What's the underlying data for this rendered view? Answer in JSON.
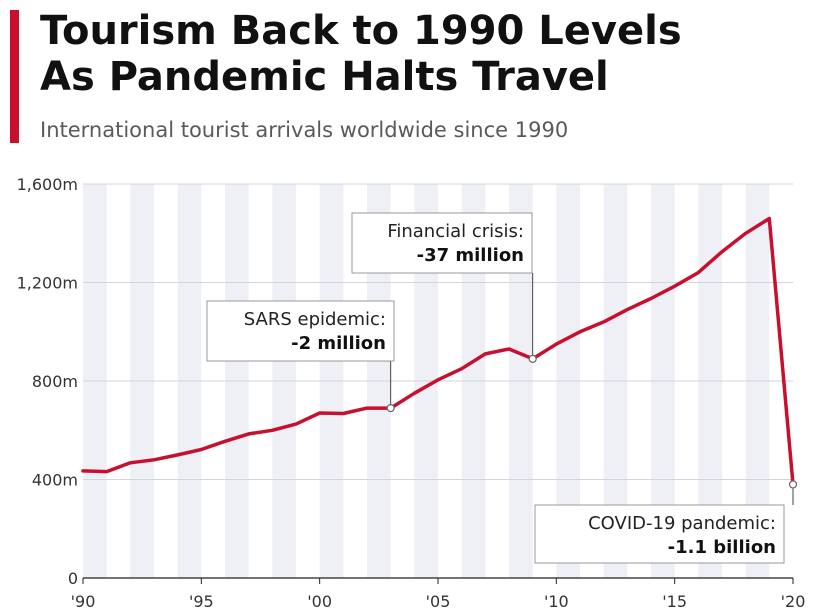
{
  "title_lines": [
    "Tourism Back to 1990 Levels",
    "As Pandemic Halts Travel"
  ],
  "subtitle": "International tourist arrivals worldwide since 1990",
  "accent_color": "#c8102e",
  "chart_data": {
    "type": "line",
    "title": "Tourism Back to 1990 Levels As Pandemic Halts Travel",
    "subtitle": "International tourist arrivals worldwide since 1990",
    "xlabel": "",
    "ylabel": "",
    "xlim": [
      1990,
      2020
    ],
    "ylim": [
      0,
      1600
    ],
    "grid": true,
    "y_ticks": [
      {
        "value": 0,
        "label": "0"
      },
      {
        "value": 400,
        "label": "400m"
      },
      {
        "value": 800,
        "label": "800m"
      },
      {
        "value": 1200,
        "label": "1,200m"
      },
      {
        "value": 1600,
        "label": "1,600m"
      }
    ],
    "x_ticks": [
      {
        "value": 1990,
        "label": "'90"
      },
      {
        "value": 1995,
        "label": "'95"
      },
      {
        "value": 2000,
        "label": "'00"
      },
      {
        "value": 2005,
        "label": "'05"
      },
      {
        "value": 2010,
        "label": "'10"
      },
      {
        "value": 2015,
        "label": "'15"
      },
      {
        "value": 2020,
        "label": "'20"
      }
    ],
    "series": [
      {
        "color": "#c8102e",
        "x": [
          1990,
          1991,
          1992,
          1993,
          1994,
          1995,
          1996,
          1997,
          1998,
          1999,
          2000,
          2001,
          2002,
          2003,
          2004,
          2005,
          2006,
          2007,
          2008,
          2009,
          2010,
          2011,
          2012,
          2013,
          2014,
          2015,
          2016,
          2017,
          2018,
          2019,
          2020
        ],
        "values": [
          435,
          432,
          468,
          480,
          500,
          522,
          555,
          585,
          600,
          625,
          670,
          668,
          690,
          690,
          750,
          805,
          850,
          910,
          930,
          890,
          950,
          1000,
          1040,
          1090,
          1135,
          1185,
          1240,
          1325,
          1400,
          1460,
          380
        ]
      }
    ],
    "annotations": [
      {
        "x": 2003,
        "y": 690,
        "line1": "SARS epidemic:",
        "line2": "-2 million"
      },
      {
        "x": 2009,
        "y": 890,
        "line1": "Financial crisis:",
        "line2": "-37 million"
      },
      {
        "x": 2020,
        "y": 380,
        "line1": "COVID-19 pandemic:",
        "line2": "-1.1 billion"
      }
    ]
  }
}
